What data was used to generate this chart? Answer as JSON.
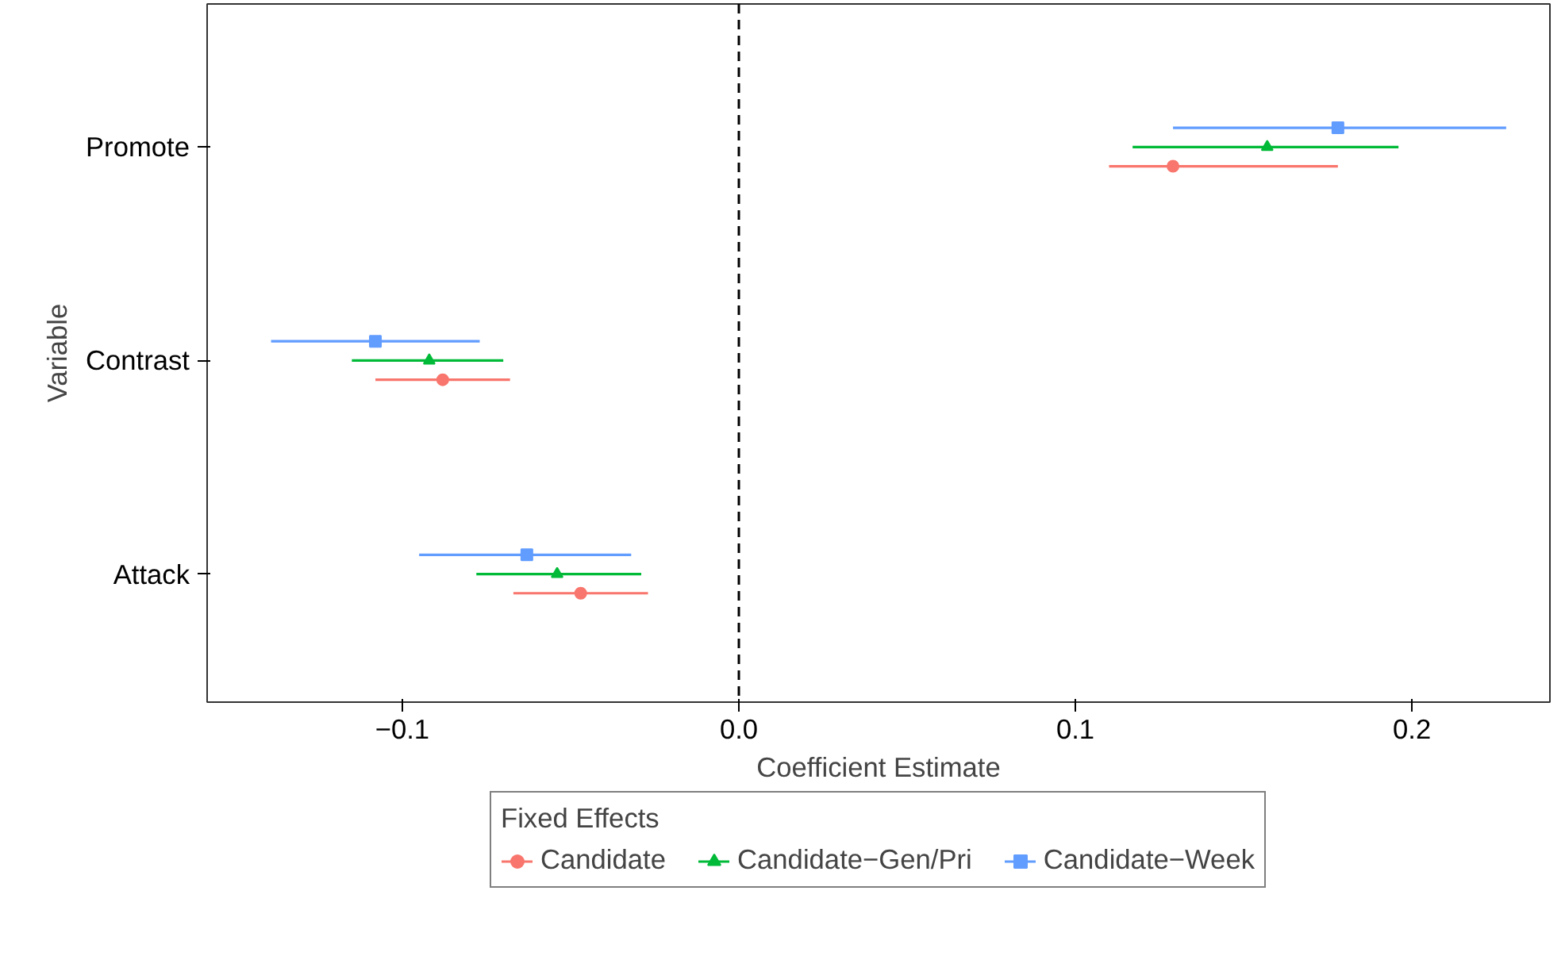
{
  "chart_data": {
    "type": "scatter",
    "orientation": "horizontal",
    "xlabel": "Coefficient Estimate",
    "ylabel": "Variable",
    "legend_title": "Fixed Effects",
    "legend": "bottom",
    "grid": false,
    "categories": [
      "Promote",
      "Contrast",
      "Attack"
    ],
    "xlim": [
      -0.158,
      0.241
    ],
    "xticks": [
      {
        "value": -0.1,
        "label": "−0.1"
      },
      {
        "value": 0,
        "label": "0.0"
      },
      0.1,
      0.2
    ],
    "ref_lines": [
      {
        "axis": "x",
        "value": 0,
        "color": "#000000",
        "line_style": "dashed"
      }
    ],
    "series": [
      {
        "name": "Candidate",
        "color": "#f8766d",
        "marker": "circle",
        "values": [
          0.129,
          -0.088,
          -0.047
        ],
        "errors": [
          [
            0.11,
            0.178
          ],
          [
            -0.108,
            -0.068
          ],
          [
            -0.067,
            -0.027
          ]
        ]
      },
      {
        "name": "Candidate−Gen/Pri",
        "color": "#00ba38",
        "marker": "triangle",
        "values": [
          0.157,
          -0.092,
          -0.054
        ],
        "errors": [
          [
            0.117,
            0.196
          ],
          [
            -0.115,
            -0.07
          ],
          [
            -0.078,
            -0.029
          ]
        ]
      },
      {
        "name": "Candidate−Week",
        "color": "#619cff",
        "marker": "square",
        "values": [
          0.178,
          -0.108,
          -0.063
        ],
        "errors": [
          [
            0.129,
            0.228
          ],
          [
            -0.139,
            -0.077
          ],
          [
            -0.095,
            -0.032
          ]
        ]
      }
    ]
  }
}
